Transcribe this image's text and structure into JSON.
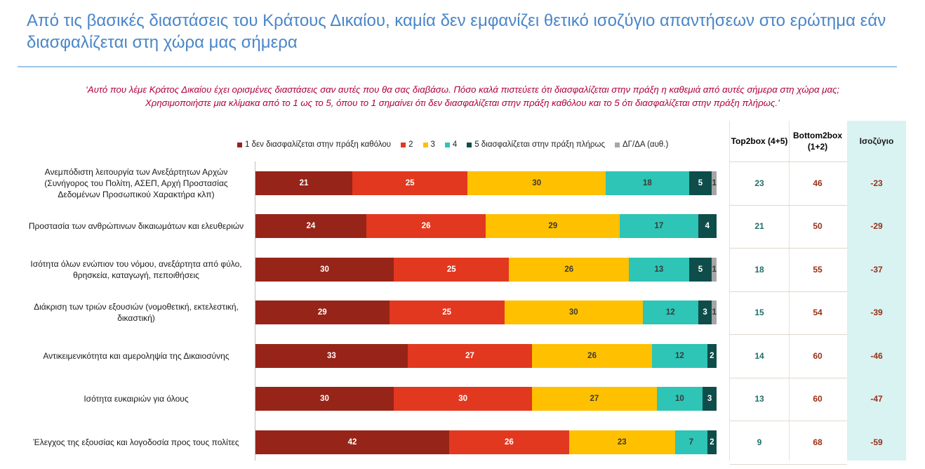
{
  "header": {
    "title": "Από τις βασικές διαστάσεις του Κράτους Δικαίου, καμία δεν εμφανίζει θετικό ισοζύγιο απαντήσεων στο ερώτημα εάν διασφαλίζεται στη χώρα μας σήμερα",
    "question_line1": "‘Αυτό που λέμε Κράτος Δικαίου έχει ορισμένες διαστάσεις σαν αυτές που θα σας διαβάσω. Πόσο καλά πιστεύετε ότι διασφαλίζεται στην πράξη η καθεμιά από αυτές σήμερα στη χώρα μας;",
    "question_line2": "Χρησιμοποιήστε μια κλίμακα από το 1 ως το 5, όπου το 1 σημαίνει ότι δεν διασφαλίζεται στην πράξη καθόλου και το 5 ότι διασφαλίζεται στην πράξη πλήρως.’"
  },
  "table": {
    "top2_header": "Top2box (4+5)",
    "bottom2_header": "Bottom2box (1+2)",
    "balance_header": "Ισοζύγιο",
    "top2_color": "#1F6F6A",
    "bottom2_color": "#9B2F14",
    "balance_color": "#9B2F14",
    "balance_bg": "#D9F2F2"
  },
  "chart_data": {
    "type": "bar",
    "orientation": "horizontal",
    "stacked": true,
    "xlim": [
      0,
      100
    ],
    "categories": [
      "Ανεμπόδιστη λειτουργία των Ανεξάρτητων Αρχών (Συνήγορος του Πολίτη, ΑΣΕΠ, Αρχή Προστασίας Δεδομένων Προσωπικού Χαρακτήρα κλπ)",
      "Προστασία των ανθρώπινων δικαιωμάτων και ελευθεριών",
      "Ισότητα όλων ενώπιον του νόμου, ανεξάρτητα από φύλο, θρησκεία, καταγωγή, πεποιθήσεις",
      "Διάκριση των τριών εξουσιών (νομοθετική, εκτελεστική, δικαστική)",
      "Αντικειμενικότητα και αμεροληψία της Δικαιοσύνης",
      "Ισότητα ευκαιριών για όλους",
      "Έλεγχος της εξουσίας και λογοδοσία προς τους πολίτες"
    ],
    "series": [
      {
        "name": "1  δεν διασφαλίζεται στην πράξη καθόλου",
        "color": "#962418",
        "values": [
          21,
          24,
          30,
          29,
          33,
          30,
          42
        ]
      },
      {
        "name": "2",
        "color": "#E2381F",
        "values": [
          25,
          26,
          25,
          25,
          27,
          30,
          26
        ]
      },
      {
        "name": "3",
        "color": "#FFC000",
        "values": [
          30,
          29,
          26,
          30,
          26,
          27,
          23
        ]
      },
      {
        "name": "4",
        "color": "#2EC4B6",
        "values": [
          18,
          17,
          13,
          12,
          12,
          10,
          7
        ]
      },
      {
        "name": "5 διασφαλίζεται στην πράξη πλήρως",
        "color": "#0E4D4A",
        "values": [
          5,
          4,
          5,
          3,
          2,
          3,
          2
        ]
      },
      {
        "name": "ΔΓ/ΔΑ (αυθ.)",
        "color": "#A6A6A6",
        "values": [
          1,
          0,
          1,
          1,
          0,
          0,
          0
        ]
      }
    ],
    "top2box": [
      23,
      21,
      18,
      15,
      14,
      13,
      9
    ],
    "bottom2box": [
      46,
      50,
      55,
      54,
      60,
      60,
      68
    ],
    "balance": [
      -23,
      -29,
      -37,
      -39,
      -46,
      -47,
      -59
    ]
  }
}
